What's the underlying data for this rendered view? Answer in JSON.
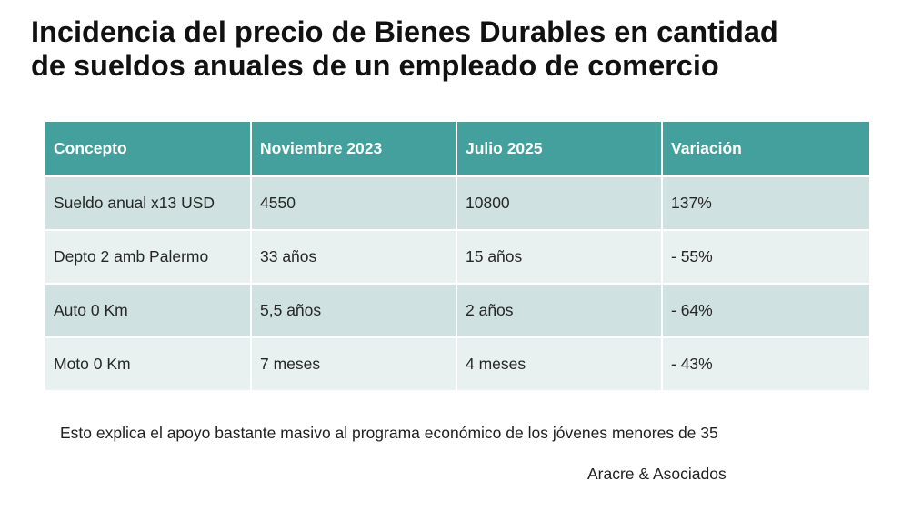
{
  "title": {
    "line1": "Incidencia del precio de Bienes Durables en cantidad",
    "line2": "de sueldos anuales de un empleado de comercio"
  },
  "table": {
    "headers": [
      "Concepto",
      "Noviembre 2023",
      "Julio 2025",
      "Variación"
    ],
    "rows": [
      [
        "Sueldo anual x13 USD",
        "4550",
        "10800",
        "137%"
      ],
      [
        "Depto 2 amb Palermo",
        "33 años",
        "15 años",
        "- 55%"
      ],
      [
        "Auto 0 Km",
        "5,5 años",
        "2 años",
        "- 64%"
      ],
      [
        "Moto 0 Km",
        "7 meses",
        "4 meses",
        "- 43%"
      ]
    ]
  },
  "note": "Esto explica el apoyo bastante masivo al programa económico de los jóvenes menores de 35",
  "source": "Aracre & Asociados",
  "colors": {
    "header_bg": "#44a09d",
    "row_dark": "#cfe1e0",
    "row_light": "#e8f0f0"
  }
}
